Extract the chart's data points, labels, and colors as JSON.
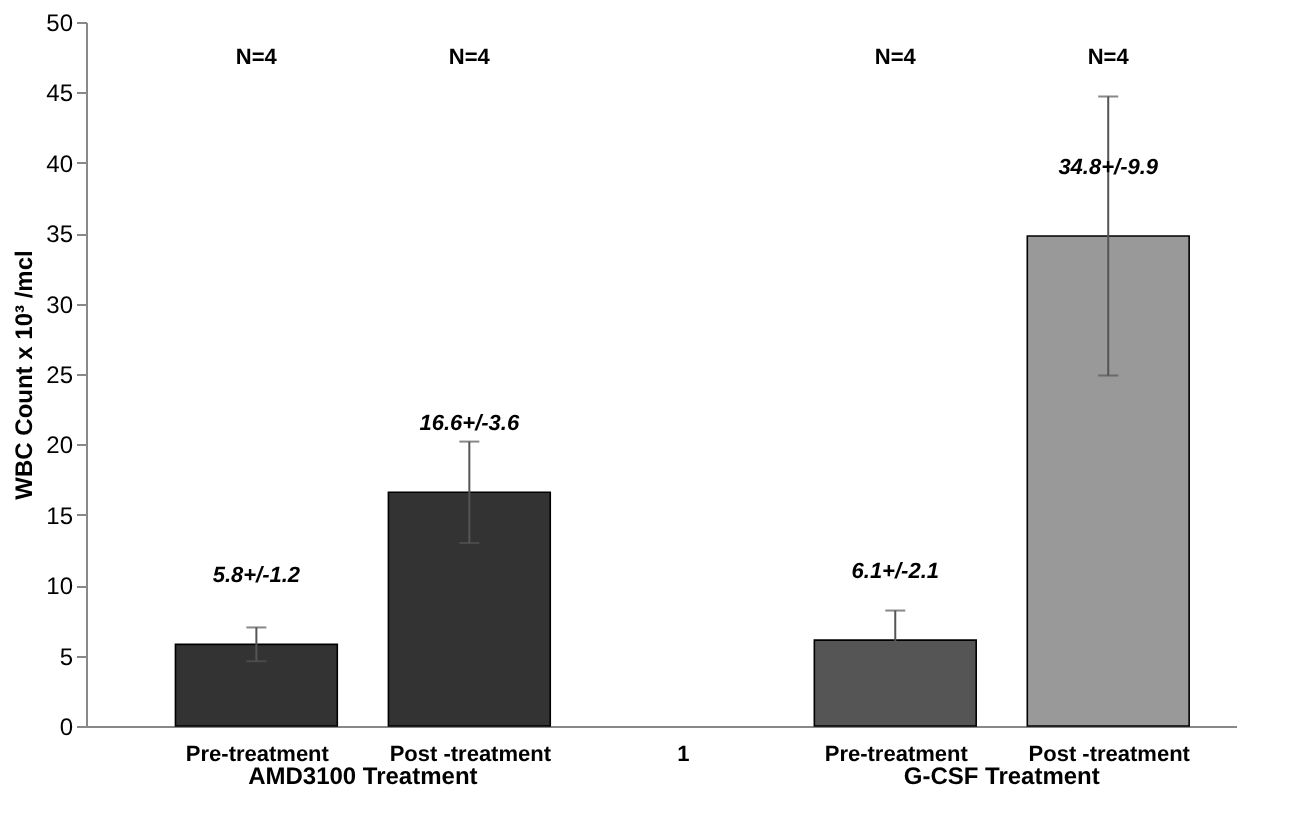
{
  "chart_data": {
    "type": "bar",
    "ylabel": "WBC Count x 10³ /mcl",
    "categories": [
      "Pre-treatment",
      "Post -treatment",
      "1",
      "Pre-treatment",
      "Post -treatment"
    ],
    "values": [
      5.8,
      16.6,
      null,
      6.1,
      34.8
    ],
    "errors": [
      1.2,
      3.6,
      null,
      2.1,
      9.9
    ],
    "colors": [
      "#333333",
      "#333333",
      "#333333",
      "#555555",
      "#999999"
    ],
    "value_labels": [
      "5.8+/-1.2",
      "16.6+/-3.6",
      null,
      "6.1+/-2.1",
      "34.8+/-9.9"
    ],
    "annotations": [
      "N=4",
      "N=4",
      "N=4",
      "N=4",
      "AMD3100 Treatment",
      "G-CSF Treatment"
    ],
    "ylim": [
      0,
      50
    ],
    "yticks": [
      0,
      5,
      10,
      15,
      20,
      25,
      30,
      35,
      40,
      45,
      50
    ],
    "grid": false
  }
}
